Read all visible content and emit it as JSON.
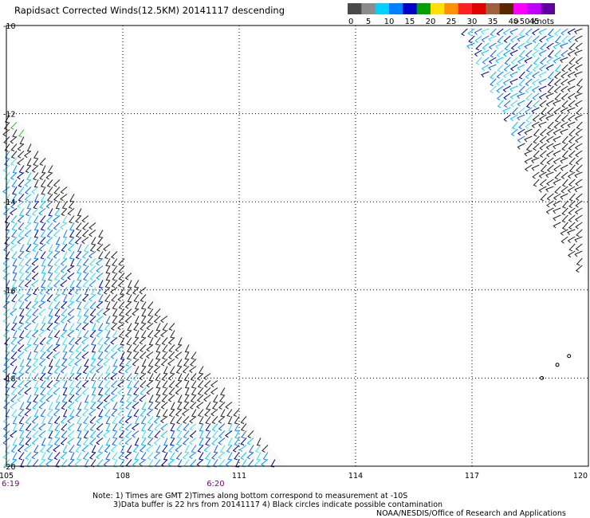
{
  "header": {
    "title": "Rapidsact Corrected Winds(12.5KM) 20141117 descending"
  },
  "colorbar": {
    "colors": [
      "#4a4a4a",
      "#8c8c8c",
      "#00d0ff",
      "#0080ff",
      "#0000c8",
      "#00a000",
      "#ffe000",
      "#ff9000",
      "#ff2020",
      "#e00000",
      "#a06040",
      "#5a2800",
      "#ff00ff",
      "#c000ff",
      "#6000a0"
    ],
    "labels": [
      "0",
      "5",
      "10",
      "15",
      "20",
      "25",
      "30",
      "35",
      "40",
      "45",
      ">50 knots"
    ]
  },
  "chart_data": {
    "type": "wind-barb map",
    "x_ticks": [
      "105",
      "108",
      "111",
      "114",
      "117",
      "120"
    ],
    "y_ticks": [
      "-10",
      "-12",
      "-14",
      "-16",
      "-18",
      "-20"
    ],
    "xlim": [
      105,
      120
    ],
    "ylim": [
      -20,
      -10
    ],
    "grid": true,
    "time_labels": [
      {
        "text": "6:19",
        "lon": 105.0
      },
      {
        "text": "6:20",
        "lon": 110.1
      }
    ],
    "swaths": [
      {
        "name": "west",
        "polygon": [
          [
            105,
            -11.8
          ],
          [
            112.2,
            -20
          ],
          [
            105,
            -20
          ]
        ]
      },
      {
        "name": "east",
        "polygon": [
          [
            116.8,
            -10
          ],
          [
            120,
            -10
          ],
          [
            120,
            -15.8
          ]
        ]
      }
    ],
    "islands": [
      [
        118.8,
        -18.0
      ],
      [
        119.2,
        -17.7
      ],
      [
        119.5,
        -17.5
      ]
    ]
  },
  "footer": {
    "note1": "Note: 1) Times are GMT 2)Times along bottom correspond to measurement at -10S",
    "note2": "3)Data buffer is 22 hrs from 20141117 4) Black circles indicate possible contamination",
    "credit": "NOAA/NESDIS/Office of Research and Applications"
  }
}
